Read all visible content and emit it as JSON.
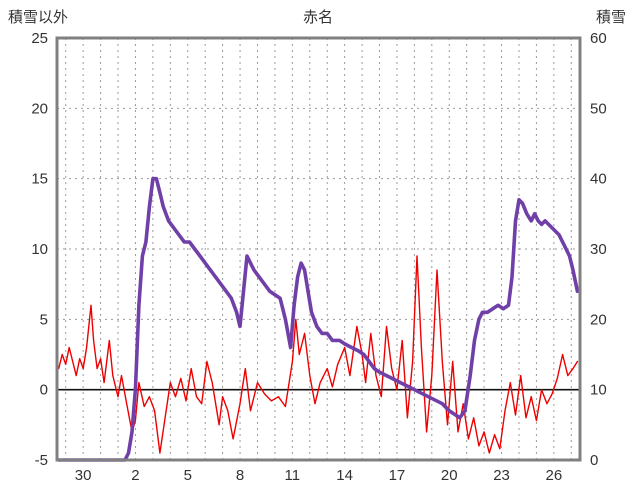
{
  "chart_data": {
    "type": "line",
    "title": "赤名",
    "left_axis_label": "積雪以外",
    "right_axis_label": "積雪",
    "left_axis": {
      "min": -5,
      "max": 25,
      "ticks": [
        25,
        20,
        15,
        10,
        5,
        0,
        -5
      ]
    },
    "right_axis": {
      "min": 0,
      "max": 60,
      "ticks": [
        60,
        50,
        40,
        30,
        20,
        10,
        0
      ]
    },
    "x_axis": {
      "domain_min": 28.5,
      "domain_max": 58.5,
      "tick_days": [
        30,
        33,
        36,
        39,
        42,
        45,
        48,
        51,
        54,
        57
      ],
      "tick_labels": [
        "30",
        "2",
        "5",
        "8",
        "11",
        "14",
        "17",
        "20",
        "23",
        "26"
      ],
      "grid_every_day": true
    },
    "grid": {
      "on": true,
      "h_dashed_left_values": [
        20,
        15,
        10,
        5
      ],
      "zero_line_left_value": 0
    },
    "colors": {
      "temperature": "#ee0000",
      "snow": "#7040a8",
      "border": "#808080",
      "grid": "#9a9a9a",
      "zero": "#111111",
      "text": "#333333"
    },
    "series": [
      {
        "name": "積雪以外",
        "axis": "left",
        "color_key": "temperature",
        "width": 1.4,
        "points": [
          [
            28.6,
            1.5
          ],
          [
            28.8,
            2.5
          ],
          [
            29.0,
            1.8
          ],
          [
            29.2,
            3.0
          ],
          [
            29.4,
            2.0
          ],
          [
            29.6,
            1.0
          ],
          [
            29.8,
            2.2
          ],
          [
            30.0,
            1.5
          ],
          [
            30.2,
            3.0
          ],
          [
            30.45,
            6.0
          ],
          [
            30.6,
            3.5
          ],
          [
            30.8,
            1.5
          ],
          [
            31.0,
            2.2
          ],
          [
            31.2,
            0.5
          ],
          [
            31.5,
            3.5
          ],
          [
            31.7,
            1.0
          ],
          [
            32.0,
            -0.5
          ],
          [
            32.2,
            1.0
          ],
          [
            32.5,
            -1.0
          ],
          [
            32.8,
            -3.0
          ],
          [
            33.0,
            -2.2
          ],
          [
            33.2,
            0.5
          ],
          [
            33.5,
            -1.2
          ],
          [
            33.8,
            -0.5
          ],
          [
            34.1,
            -1.5
          ],
          [
            34.4,
            -4.5
          ],
          [
            34.7,
            -2.0
          ],
          [
            35.0,
            0.5
          ],
          [
            35.3,
            -0.5
          ],
          [
            35.6,
            0.8
          ],
          [
            35.9,
            -0.8
          ],
          [
            36.2,
            1.5
          ],
          [
            36.5,
            -0.5
          ],
          [
            36.8,
            -1.0
          ],
          [
            37.1,
            2.0
          ],
          [
            37.4,
            0.5
          ],
          [
            37.8,
            -2.5
          ],
          [
            38.0,
            -0.5
          ],
          [
            38.3,
            -1.5
          ],
          [
            38.6,
            -3.5
          ],
          [
            39.0,
            -1.0
          ],
          [
            39.3,
            1.5
          ],
          [
            39.6,
            -1.5
          ],
          [
            40.0,
            0.5
          ],
          [
            40.4,
            -0.3
          ],
          [
            40.8,
            -0.8
          ],
          [
            41.2,
            -0.5
          ],
          [
            41.6,
            -1.2
          ],
          [
            42.0,
            2.0
          ],
          [
            42.2,
            5.0
          ],
          [
            42.4,
            2.5
          ],
          [
            42.7,
            4.0
          ],
          [
            43.0,
            1.0
          ],
          [
            43.3,
            -1.0
          ],
          [
            43.6,
            0.5
          ],
          [
            44.0,
            1.5
          ],
          [
            44.3,
            0.2
          ],
          [
            44.6,
            1.8
          ],
          [
            45.0,
            3.0
          ],
          [
            45.3,
            1.0
          ],
          [
            45.7,
            4.5
          ],
          [
            46.0,
            2.5
          ],
          [
            46.2,
            0.5
          ],
          [
            46.5,
            4.0
          ],
          [
            46.8,
            1.0
          ],
          [
            47.1,
            -0.5
          ],
          [
            47.4,
            4.5
          ],
          [
            47.7,
            1.5
          ],
          [
            48.0,
            0.0
          ],
          [
            48.3,
            3.5
          ],
          [
            48.6,
            -2.0
          ],
          [
            48.9,
            2.0
          ],
          [
            49.15,
            9.5
          ],
          [
            49.4,
            3.0
          ],
          [
            49.7,
            -3.0
          ],
          [
            50.0,
            1.0
          ],
          [
            50.3,
            8.5
          ],
          [
            50.6,
            2.0
          ],
          [
            50.9,
            -2.5
          ],
          [
            51.2,
            2.0
          ],
          [
            51.5,
            -3.0
          ],
          [
            51.8,
            -1.0
          ],
          [
            52.1,
            -3.5
          ],
          [
            52.4,
            -2.0
          ],
          [
            52.7,
            -4.0
          ],
          [
            53.0,
            -3.0
          ],
          [
            53.3,
            -4.5
          ],
          [
            53.6,
            -3.2
          ],
          [
            53.9,
            -4.2
          ],
          [
            54.2,
            -1.5
          ],
          [
            54.5,
            0.5
          ],
          [
            54.8,
            -1.8
          ],
          [
            55.1,
            1.0
          ],
          [
            55.4,
            -2.0
          ],
          [
            55.7,
            -0.5
          ],
          [
            56.0,
            -2.2
          ],
          [
            56.3,
            0.0
          ],
          [
            56.6,
            -1.0
          ],
          [
            56.9,
            -0.3
          ],
          [
            57.2,
            0.8
          ],
          [
            57.5,
            2.5
          ],
          [
            57.8,
            1.0
          ],
          [
            58.1,
            1.5
          ],
          [
            58.35,
            2.0
          ]
        ]
      },
      {
        "name": "積雪",
        "axis": "right",
        "color_key": "snow",
        "width": 3.6,
        "points": [
          [
            28.6,
            0
          ],
          [
            32.4,
            0
          ],
          [
            32.6,
            1
          ],
          [
            32.8,
            4
          ],
          [
            33.0,
            10
          ],
          [
            33.2,
            22
          ],
          [
            33.4,
            29
          ],
          [
            33.6,
            31
          ],
          [
            33.8,
            36
          ],
          [
            34.0,
            40
          ],
          [
            34.2,
            40
          ],
          [
            34.4,
            38
          ],
          [
            34.6,
            36
          ],
          [
            34.9,
            34
          ],
          [
            35.2,
            33
          ],
          [
            35.5,
            32
          ],
          [
            35.8,
            31
          ],
          [
            36.1,
            31
          ],
          [
            36.4,
            30
          ],
          [
            36.7,
            29
          ],
          [
            37.0,
            28
          ],
          [
            37.3,
            27
          ],
          [
            37.6,
            26
          ],
          [
            37.9,
            25
          ],
          [
            38.2,
            24
          ],
          [
            38.5,
            23
          ],
          [
            38.8,
            21
          ],
          [
            39.0,
            19
          ],
          [
            39.2,
            24
          ],
          [
            39.4,
            29
          ],
          [
            39.6,
            28
          ],
          [
            39.8,
            27
          ],
          [
            40.1,
            26
          ],
          [
            40.4,
            25
          ],
          [
            40.7,
            24
          ],
          [
            41.0,
            23.5
          ],
          [
            41.3,
            23
          ],
          [
            41.6,
            20
          ],
          [
            41.9,
            16
          ],
          [
            42.1,
            22
          ],
          [
            42.3,
            26
          ],
          [
            42.5,
            28
          ],
          [
            42.7,
            27
          ],
          [
            42.9,
            24
          ],
          [
            43.1,
            21
          ],
          [
            43.4,
            19
          ],
          [
            43.7,
            18
          ],
          [
            44.0,
            18
          ],
          [
            44.3,
            17
          ],
          [
            44.7,
            17
          ],
          [
            45.0,
            16.5
          ],
          [
            45.4,
            16
          ],
          [
            45.8,
            15.5
          ],
          [
            46.1,
            15
          ],
          [
            46.4,
            14
          ],
          [
            46.7,
            13
          ],
          [
            47.0,
            12.5
          ],
          [
            47.4,
            12
          ],
          [
            47.8,
            11.5
          ],
          [
            48.2,
            11
          ],
          [
            48.6,
            10.5
          ],
          [
            49.0,
            10
          ],
          [
            49.4,
            9.5
          ],
          [
            49.8,
            9
          ],
          [
            50.2,
            8.5
          ],
          [
            50.6,
            8
          ],
          [
            51.0,
            7
          ],
          [
            51.3,
            6.5
          ],
          [
            51.6,
            6
          ],
          [
            51.9,
            7
          ],
          [
            52.2,
            12
          ],
          [
            52.45,
            17
          ],
          [
            52.7,
            20
          ],
          [
            52.9,
            21
          ],
          [
            53.2,
            21
          ],
          [
            53.5,
            21.5
          ],
          [
            53.8,
            22
          ],
          [
            54.1,
            21.5
          ],
          [
            54.4,
            22
          ],
          [
            54.6,
            26
          ],
          [
            54.8,
            34
          ],
          [
            55.0,
            37
          ],
          [
            55.2,
            36.5
          ],
          [
            55.45,
            35
          ],
          [
            55.7,
            34
          ],
          [
            55.9,
            35
          ],
          [
            56.1,
            34
          ],
          [
            56.3,
            33.5
          ],
          [
            56.5,
            34
          ],
          [
            56.7,
            33.5
          ],
          [
            56.9,
            33
          ],
          [
            57.1,
            32.5
          ],
          [
            57.3,
            32
          ],
          [
            57.5,
            31
          ],
          [
            57.7,
            30
          ],
          [
            57.9,
            29
          ],
          [
            58.1,
            27
          ],
          [
            58.35,
            24
          ]
        ]
      }
    ]
  }
}
